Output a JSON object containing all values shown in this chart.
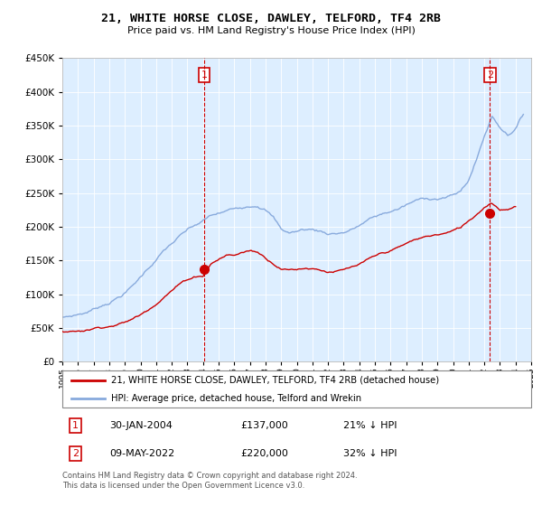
{
  "title": "21, WHITE HORSE CLOSE, DAWLEY, TELFORD, TF4 2RB",
  "subtitle": "Price paid vs. HM Land Registry's House Price Index (HPI)",
  "legend_line1": "21, WHITE HORSE CLOSE, DAWLEY, TELFORD, TF4 2RB (detached house)",
  "legend_line2": "HPI: Average price, detached house, Telford and Wrekin",
  "footnote1": "Contains HM Land Registry data © Crown copyright and database right 2024.",
  "footnote2": "This data is licensed under the Open Government Licence v3.0.",
  "annotation1_label": "1",
  "annotation1_date": "30-JAN-2004",
  "annotation1_price": "£137,000",
  "annotation1_hpi": "21% ↓ HPI",
  "annotation2_label": "2",
  "annotation2_date": "09-MAY-2022",
  "annotation2_price": "£220,000",
  "annotation2_hpi": "32% ↓ HPI",
  "red_color": "#cc0000",
  "blue_color": "#88aadd",
  "bg_color": "#ddeeff",
  "ylim": [
    0,
    450000
  ],
  "yticks": [
    0,
    50000,
    100000,
    150000,
    200000,
    250000,
    300000,
    350000,
    400000,
    450000
  ],
  "sale1_x": 2004.08,
  "sale1_y": 137000,
  "sale2_x": 2022.36,
  "sale2_y": 220000,
  "xmin": 1995,
  "xmax": 2025,
  "hpi_x": [
    1995.0,
    1995.5,
    1996.0,
    1996.5,
    1997.0,
    1997.5,
    1998.0,
    1998.5,
    1999.0,
    1999.5,
    2000.0,
    2000.5,
    2001.0,
    2001.5,
    2002.0,
    2002.5,
    2003.0,
    2003.5,
    2004.0,
    2004.5,
    2005.0,
    2005.5,
    2006.0,
    2006.5,
    2007.0,
    2007.5,
    2008.0,
    2008.5,
    2009.0,
    2009.5,
    2010.0,
    2010.5,
    2011.0,
    2011.5,
    2012.0,
    2012.5,
    2013.0,
    2013.5,
    2014.0,
    2014.5,
    2015.0,
    2015.5,
    2016.0,
    2016.5,
    2017.0,
    2017.5,
    2018.0,
    2018.5,
    2019.0,
    2019.5,
    2020.0,
    2020.5,
    2021.0,
    2021.5,
    2022.0,
    2022.5,
    2023.0,
    2023.5,
    2024.0,
    2024.5
  ],
  "hpi_y": [
    65000,
    67000,
    70000,
    73000,
    78000,
    84000,
    90000,
    97000,
    105000,
    115000,
    128000,
    142000,
    155000,
    168000,
    178000,
    188000,
    196000,
    202000,
    208000,
    215000,
    218000,
    221000,
    224000,
    228000,
    232000,
    235000,
    230000,
    218000,
    200000,
    195000,
    197000,
    200000,
    200000,
    198000,
    195000,
    196000,
    198000,
    202000,
    208000,
    215000,
    220000,
    224000,
    228000,
    232000,
    237000,
    242000,
    245000,
    247000,
    248000,
    250000,
    252000,
    258000,
    275000,
    305000,
    340000,
    370000,
    355000,
    345000,
    355000,
    375000
  ],
  "red_x": [
    1995.0,
    1995.5,
    1996.0,
    1996.5,
    1997.0,
    1997.5,
    1998.0,
    1998.5,
    1999.0,
    1999.5,
    2000.0,
    2000.5,
    2001.0,
    2001.5,
    2002.0,
    2002.5,
    2003.0,
    2003.5,
    2004.0,
    2004.5,
    2005.0,
    2005.5,
    2006.0,
    2006.5,
    2007.0,
    2007.5,
    2008.0,
    2008.5,
    2009.0,
    2009.5,
    2010.0,
    2010.5,
    2011.0,
    2011.5,
    2012.0,
    2012.5,
    2013.0,
    2013.5,
    2014.0,
    2014.5,
    2015.0,
    2015.5,
    2016.0,
    2016.5,
    2017.0,
    2017.5,
    2018.0,
    2018.5,
    2019.0,
    2019.5,
    2020.0,
    2020.5,
    2021.0,
    2021.5,
    2022.0,
    2022.5,
    2023.0,
    2023.5,
    2024.0
  ],
  "red_y": [
    45000,
    46000,
    47000,
    49000,
    52000,
    55000,
    57000,
    60000,
    63000,
    68000,
    74000,
    83000,
    93000,
    104000,
    114000,
    123000,
    130000,
    135000,
    137000,
    155000,
    162000,
    168000,
    168000,
    172000,
    175000,
    173000,
    165000,
    158000,
    152000,
    150000,
    151000,
    153000,
    154000,
    152000,
    150000,
    151000,
    152000,
    155000,
    158000,
    163000,
    168000,
    172000,
    176000,
    180000,
    185000,
    190000,
    193000,
    196000,
    198000,
    200000,
    203000,
    208000,
    218000,
    228000,
    240000,
    248000,
    238000,
    240000,
    245000
  ]
}
